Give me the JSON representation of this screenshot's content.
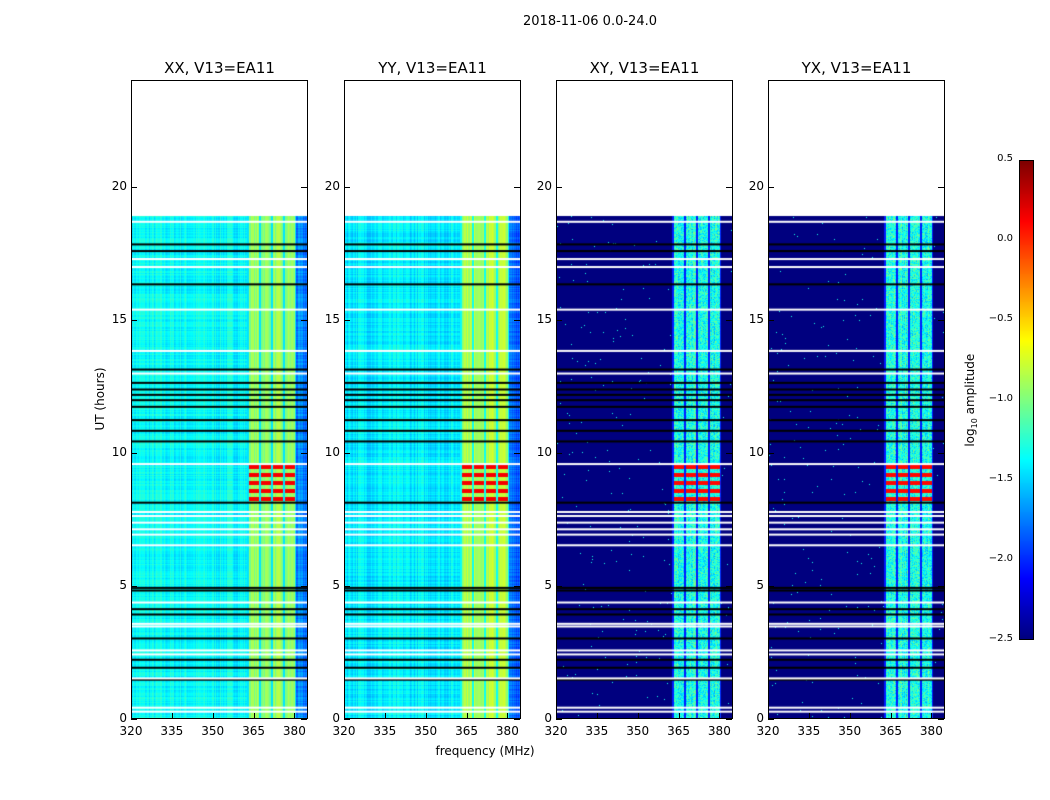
{
  "chart_data": {
    "type": "heatmap",
    "title": "2018-11-06 0.0-24.0",
    "xlabel": "frequency (MHz)",
    "ylabel": "UT (hours)",
    "xlim": [
      320,
      385
    ],
    "ylim": [
      0,
      24
    ],
    "xticks": [
      "320",
      "335",
      "350",
      "365",
      "380"
    ],
    "xtick_values": [
      320,
      335,
      350,
      365,
      380
    ],
    "yticks": [
      "0",
      "5",
      "10",
      "15",
      "20"
    ],
    "ytick_values": [
      0,
      5,
      10,
      15,
      20
    ],
    "data_end_hour": 18.9,
    "band_mhz": [
      362,
      380
    ],
    "flare_hours": [
      8.1,
      9.6
    ],
    "white_flag_hours": [
      0.35,
      0.5,
      1.6,
      2.5,
      2.65,
      3.55,
      3.65,
      4.45,
      6.6,
      7.0,
      7.2,
      7.45,
      7.7,
      7.85,
      9.65,
      13.05,
      13.9,
      15.45,
      17.05,
      17.35,
      18.75
    ],
    "black_flag_hours": [
      1.55,
      2.0,
      2.3,
      3.1,
      4.0,
      4.2,
      4.9,
      5.0,
      8.2,
      10.5,
      10.9,
      11.3,
      11.8,
      12.05,
      12.25,
      12.45,
      12.7,
      13.2,
      16.4,
      17.65,
      17.9
    ],
    "panels": [
      {
        "title": "XX, V13=EA11",
        "kind": "parallel",
        "base": -1.45,
        "band": -0.95,
        "flare": 0.15
      },
      {
        "title": "YY, V13=EA11",
        "kind": "parallel",
        "base": -1.5,
        "band": -0.85,
        "flare": 0.15
      },
      {
        "title": "XY, V13=EA11",
        "kind": "cross",
        "base": -2.5,
        "band": -1.55,
        "flare": 0.1
      },
      {
        "title": "YX, V13=EA11",
        "kind": "cross",
        "base": -2.5,
        "band": -1.55,
        "flare": 0.1
      }
    ],
    "colorbar": {
      "label_main": "log",
      "label_sub": "10",
      "label_rest": " amplitude",
      "range": [
        -2.5,
        0.5
      ],
      "ticks": [
        "0.5",
        "0.0",
        "−0.5",
        "−1.0",
        "−1.5",
        "−2.0",
        "−2.5"
      ],
      "tick_values": [
        0.5,
        0,
        -0.5,
        -1,
        -1.5,
        -2,
        -2.5
      ],
      "colormap": "jet"
    }
  }
}
